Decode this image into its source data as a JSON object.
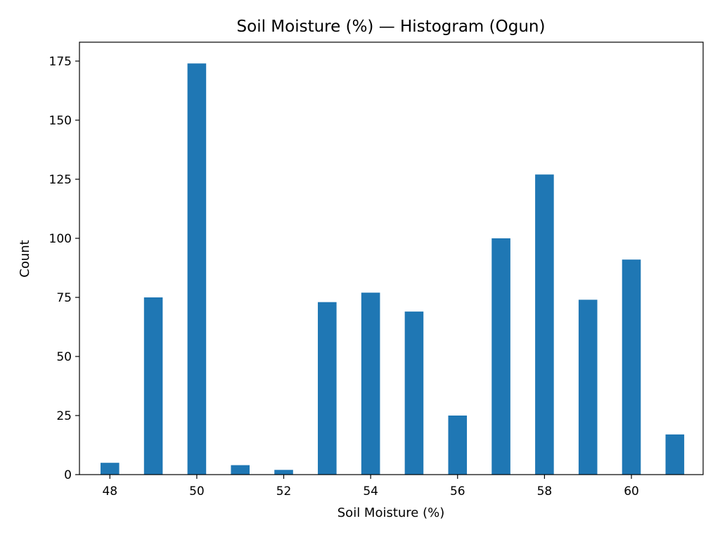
{
  "chart_data": {
    "type": "bar",
    "title": "Soil Moisture (%) — Histogram (Ogun)",
    "xlabel": "Soil Moisture (%)",
    "ylabel": "Count",
    "xlim": [
      47.3,
      61.65
    ],
    "ylim": [
      0,
      183
    ],
    "xticks": [
      48,
      50,
      52,
      54,
      56,
      58,
      60
    ],
    "yticks": [
      0,
      25,
      50,
      75,
      100,
      125,
      150,
      175
    ],
    "bar_width": 0.43,
    "x": [
      48,
      49,
      50,
      51,
      52,
      53,
      54,
      55,
      56,
      57,
      58,
      59,
      60,
      61
    ],
    "values": [
      5,
      75,
      174,
      4,
      2,
      73,
      77,
      69,
      25,
      100,
      127,
      74,
      91,
      17
    ],
    "color": "#1f77b4",
    "grid": false
  }
}
